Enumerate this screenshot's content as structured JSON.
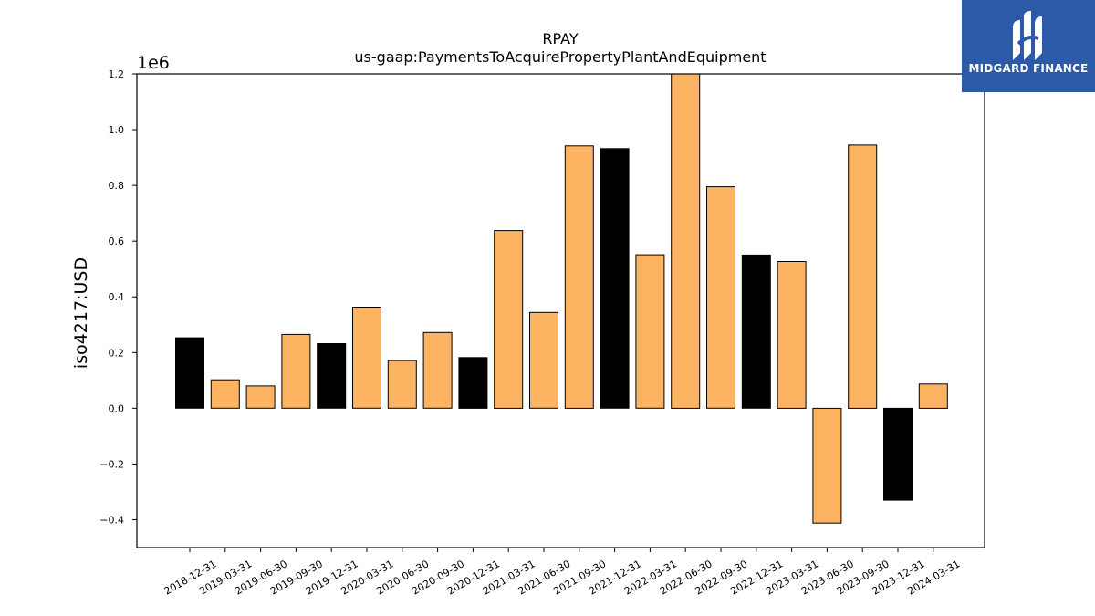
{
  "chart_data": {
    "type": "bar",
    "title": "RPAY",
    "subtitle": "us-gaap:PaymentsToAcquirePropertyPlantAndEquipment",
    "ylabel": "iso4217:USD",
    "y_multiplier": "1e6",
    "ylim": [
      -0.5,
      1.2
    ],
    "yticks": [
      -0.4,
      -0.2,
      0.0,
      0.2,
      0.4,
      0.6,
      0.8,
      1.0,
      1.2
    ],
    "yticklabels": [
      "−0.4",
      "−0.2",
      "0.0",
      "0.2",
      "0.4",
      "0.6",
      "0.8",
      "1.0",
      "1.2"
    ],
    "categories": [
      "2018-12-31",
      "2019-03-31",
      "2019-06-30",
      "2019-09-30",
      "2019-12-31",
      "2020-03-31",
      "2020-06-30",
      "2020-09-30",
      "2020-12-31",
      "2021-03-31",
      "2021-06-30",
      "2021-09-30",
      "2021-12-31",
      "2022-03-31",
      "2022-06-30",
      "2022-09-30",
      "2022-12-31",
      "2023-03-31",
      "2023-06-30",
      "2023-09-30",
      "2023-12-31",
      "2024-03-31"
    ],
    "values": [
      0.253,
      0.102,
      0.08,
      0.265,
      0.232,
      0.363,
      0.171,
      0.272,
      0.182,
      0.638,
      0.344,
      0.942,
      0.932,
      0.551,
      1.205,
      0.795,
      0.55,
      0.527,
      -0.412,
      0.945,
      -0.33,
      0.087
    ],
    "colors": [
      "#000000",
      "#fdb462",
      "#fdb462",
      "#fdb462",
      "#000000",
      "#fdb462",
      "#fdb462",
      "#fdb462",
      "#000000",
      "#fdb462",
      "#fdb462",
      "#fdb462",
      "#000000",
      "#fdb462",
      "#fdb462",
      "#fdb462",
      "#000000",
      "#fdb462",
      "#fdb462",
      "#fdb462",
      "#000000",
      "#fdb462"
    ],
    "grid": false
  },
  "logo": {
    "text": "MIDGARD FINANCE",
    "background": "#2c5aa8"
  }
}
